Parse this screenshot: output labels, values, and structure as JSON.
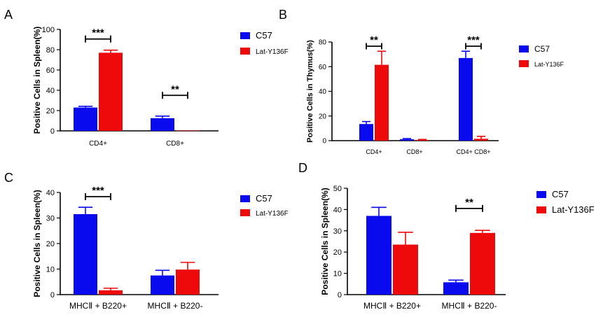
{
  "colors": {
    "c57": "#0a0aee",
    "lat": "#ee0a0a"
  },
  "chart_data": [
    {
      "panel": "A",
      "type": "bar",
      "ylabel": "Positive Cells in Spleen(%)",
      "ylim": [
        0,
        100
      ],
      "yticks": [
        0,
        20,
        40,
        60,
        80,
        100
      ],
      "categories": [
        "CD4+",
        "CD8+"
      ],
      "series": [
        {
          "name": "C57",
          "color": "#0a0aee",
          "values": [
            23,
            12.5
          ],
          "errors": [
            1.2,
            2
          ]
        },
        {
          "name": "Lat-Y136F",
          "color": "#ee0a0a",
          "values": [
            77,
            0.3
          ],
          "errors": [
            2.5,
            0
          ]
        }
      ],
      "significance": [
        {
          "label": "***",
          "category": 0
        },
        {
          "label": "**",
          "category": 1
        }
      ]
    },
    {
      "panel": "B",
      "type": "bar",
      "ylabel": "Positive Cells in Thymus(%)",
      "ylim": [
        0,
        80
      ],
      "yticks": [
        0,
        20,
        40,
        60,
        80
      ],
      "categories": [
        "CD4+",
        "CD8+",
        "CD4+ CD8+"
      ],
      "series": [
        {
          "name": "C57",
          "color": "#0a0aee",
          "values": [
            13.5,
            1.2,
            67
          ],
          "errors": [
            2,
            0.5,
            5.5
          ]
        },
        {
          "name": "Lat-Y136F",
          "color": "#ee0a0a",
          "values": [
            61.5,
            0.6,
            1.5
          ],
          "errors": [
            11,
            0.4,
            2
          ]
        }
      ],
      "significance": [
        {
          "label": "**",
          "category": 0
        },
        {
          "label": "***",
          "category": 2
        }
      ]
    },
    {
      "panel": "C",
      "type": "bar",
      "ylabel": "Positive Cells in Spleen(%)",
      "ylim": [
        0,
        40
      ],
      "yticks": [
        0,
        10,
        20,
        30,
        40
      ],
      "categories": [
        "MHCⅡ + B220+",
        "MHCⅡ + B220-"
      ],
      "series": [
        {
          "name": "C57",
          "color": "#0a0aee",
          "values": [
            31.5,
            7.5
          ],
          "errors": [
            2.7,
            2
          ]
        },
        {
          "name": "Lat-Y136F",
          "color": "#ee0a0a",
          "values": [
            1.7,
            9.8
          ],
          "errors": [
            0.8,
            2.8
          ]
        }
      ],
      "significance": [
        {
          "label": "***",
          "category": 0
        }
      ]
    },
    {
      "panel": "D",
      "type": "bar",
      "ylabel": "Positive Cells in Spleen(%)",
      "ylim": [
        0,
        50
      ],
      "yticks": [
        0,
        10,
        20,
        30,
        40,
        50
      ],
      "categories": [
        "MHCⅡ + B220+",
        "MHCⅡ + B220-"
      ],
      "series": [
        {
          "name": "C57",
          "color": "#0a0aee",
          "values": [
            37,
            5.8
          ],
          "errors": [
            4,
            1
          ]
        },
        {
          "name": "Lat-Y136F",
          "color": "#ee0a0a",
          "values": [
            23.5,
            29
          ],
          "errors": [
            5.8,
            1.2
          ]
        }
      ],
      "significance": [
        {
          "label": "**",
          "category": 1
        }
      ]
    }
  ]
}
